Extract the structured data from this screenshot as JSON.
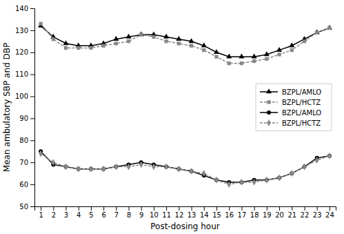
{
  "chart_data": {
    "type": "line",
    "x": [
      1,
      2,
      3,
      4,
      5,
      6,
      7,
      8,
      9,
      10,
      11,
      12,
      13,
      14,
      15,
      16,
      17,
      18,
      19,
      20,
      21,
      22,
      23,
      24
    ],
    "xlim": [
      0.5,
      24.5
    ],
    "xticks": [
      1,
      2,
      3,
      4,
      5,
      6,
      7,
      8,
      9,
      10,
      11,
      12,
      13,
      14,
      15,
      16,
      17,
      18,
      19,
      20,
      21,
      22,
      23,
      24
    ],
    "ylim": [
      50,
      140
    ],
    "yticks": [
      50,
      60,
      70,
      80,
      90,
      100,
      110,
      120,
      130,
      140
    ],
    "xlabel": "Post-dosing hour",
    "ylabel": "Mean ambulatory SBP and DBP",
    "legend": "right",
    "series": [
      {
        "name": "BZPL/AMLO",
        "color": "#000000",
        "marker": "triangle",
        "line_style": "solid",
        "values": [
          132,
          127,
          124,
          123,
          123,
          124,
          126,
          127,
          128,
          128,
          127,
          126,
          125,
          123,
          120,
          118,
          118,
          118,
          119,
          121,
          123,
          126,
          129,
          131
        ]
      },
      {
        "name": "BZPL/HCTZ",
        "color": "#888888",
        "marker": "square",
        "line_style": "dashed",
        "values": [
          133,
          126,
          122,
          122,
          122,
          123,
          124,
          125,
          128,
          127,
          125,
          124,
          123,
          121,
          118,
          115,
          115,
          116,
          117,
          119,
          121,
          125,
          129,
          131
        ]
      },
      {
        "name": "BZPL/AMLO",
        "color": "#000000",
        "marker": "circle",
        "line_style": "solid",
        "values": [
          75,
          69,
          68,
          67,
          67,
          67,
          68,
          69,
          70,
          69,
          68,
          67,
          66,
          64,
          62,
          61,
          61,
          62,
          62,
          63,
          65,
          68,
          72,
          73
        ]
      },
      {
        "name": "BZPL/HCTZ",
        "color": "#888888",
        "marker": "diamond",
        "line_style": "dashed",
        "values": [
          74,
          70,
          68,
          67,
          67,
          67,
          68,
          68,
          69,
          68,
          68,
          67,
          66,
          65,
          62,
          60,
          61,
          61,
          62,
          63,
          65,
          68,
          71,
          73
        ]
      }
    ]
  }
}
